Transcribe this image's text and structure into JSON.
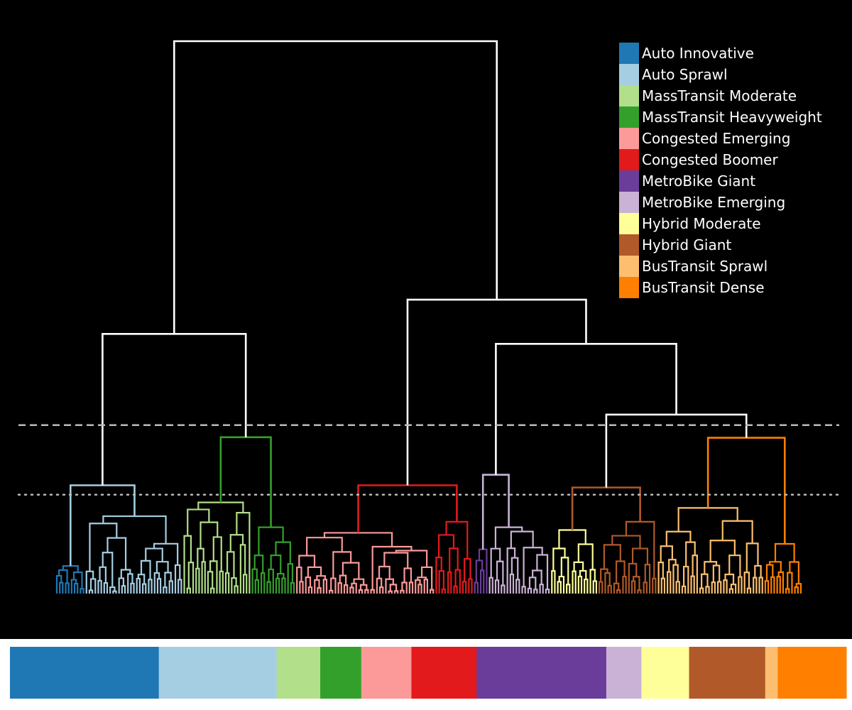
{
  "chart_data": {
    "type": "dendrogram",
    "title": "",
    "xlabel": "",
    "ylabel": "",
    "background": "#000000",
    "link_color_above_cut": "#ffffff",
    "cut_lines": [
      {
        "style": "dashed",
        "color": "#bbbbbb",
        "height": 0.305
      },
      {
        "style": "dotted",
        "color": "#bbbbbb",
        "height": 0.179
      }
    ],
    "legend_placement": "top-right",
    "clusters": [
      {
        "name": "Auto Innovative",
        "color": "#1f78b4",
        "leaves": 10
      },
      {
        "name": "Auto Sprawl",
        "color": "#a6cee3",
        "leaves": 33
      },
      {
        "name": "MassTransit Moderate",
        "color": "#b2df8a",
        "leaves": 23
      },
      {
        "name": "MassTransit Heavyweight",
        "color": "#33a02c",
        "leaves": 15
      },
      {
        "name": "Congested Emerging",
        "color": "#fb9a99",
        "leaves": 47
      },
      {
        "name": "Congested Boomer",
        "color": "#e31a1c",
        "leaves": 13
      },
      {
        "name": "MetroBike Giant",
        "color": "#6a3d9a",
        "leaves": 5
      },
      {
        "name": "MetroBike Emerging",
        "color": "#cab2d6",
        "leaves": 21
      },
      {
        "name": "Hybrid Moderate",
        "color": "#ffff99",
        "leaves": 16
      },
      {
        "name": "Hybrid Giant",
        "color": "#b15928",
        "leaves": 20
      },
      {
        "name": "BusTransit Sprawl",
        "color": "#fdbf6f",
        "leaves": 36
      },
      {
        "name": "BusTransit Dense",
        "color": "#ff7f00",
        "leaves": 13
      }
    ],
    "links_above_cut": [
      {
        "left": "Auto Innovative",
        "right": "Auto Sprawl",
        "height": 0.196
      },
      {
        "left": "MassTransit Moderate",
        "right": "MassTransit Heavyweight",
        "height": 0.283
      },
      {
        "left": "Auto",
        "right": "MassTransit",
        "height": 0.47
      },
      {
        "left": "Congested Emerging",
        "right": "Congested Boomer",
        "height": 0.196
      },
      {
        "left": "MetroBike Giant",
        "right": "MetroBike Emerging",
        "height": 0.215
      },
      {
        "left": "Hybrid Moderate",
        "right": "Hybrid Giant",
        "height": 0.192
      },
      {
        "left": "BusTransit Sprawl",
        "right": "BusTransit Dense",
        "height": 0.282
      },
      {
        "left": "Hybrid",
        "right": "BusTransit",
        "height": 0.324
      },
      {
        "left": "MetroBike",
        "right": "Hybrid+BusTransit",
        "height": 0.452
      },
      {
        "left": "Congested",
        "right": "MetroBike+Hybrid+BusTransit",
        "height": 0.532
      },
      {
        "left": "Auto+MassTransit",
        "right": "rest",
        "height": 1.0
      }
    ],
    "color_bar": [
      {
        "name": "Auto Innovative",
        "color": "#1f78b4",
        "share": 0.178
      },
      {
        "name": "Auto Sprawl",
        "color": "#a6cee3",
        "share": 0.141
      },
      {
        "name": "MassTransit Moderate",
        "color": "#b2df8a",
        "share": 0.052
      },
      {
        "name": "MassTransit Heavyweight",
        "color": "#33a02c",
        "share": 0.049
      },
      {
        "name": "Congested Emerging",
        "color": "#fb9a99",
        "share": 0.06
      },
      {
        "name": "Congested Boomer",
        "color": "#e31a1c",
        "share": 0.078
      },
      {
        "name": "MetroBike Giant",
        "color": "#6a3d9a",
        "share": 0.155
      },
      {
        "name": "MetroBike Emerging",
        "color": "#cab2d6",
        "share": 0.042
      },
      {
        "name": "Hybrid Moderate",
        "color": "#ffff99",
        "share": 0.057
      },
      {
        "name": "Hybrid Giant",
        "color": "#b15928",
        "share": 0.091
      },
      {
        "name": "BusTransit Sprawl",
        "color": "#fdbf6f",
        "share": 0.015
      },
      {
        "name": "BusTransit Dense",
        "color": "#ff7f00",
        "share": 0.082
      }
    ]
  }
}
